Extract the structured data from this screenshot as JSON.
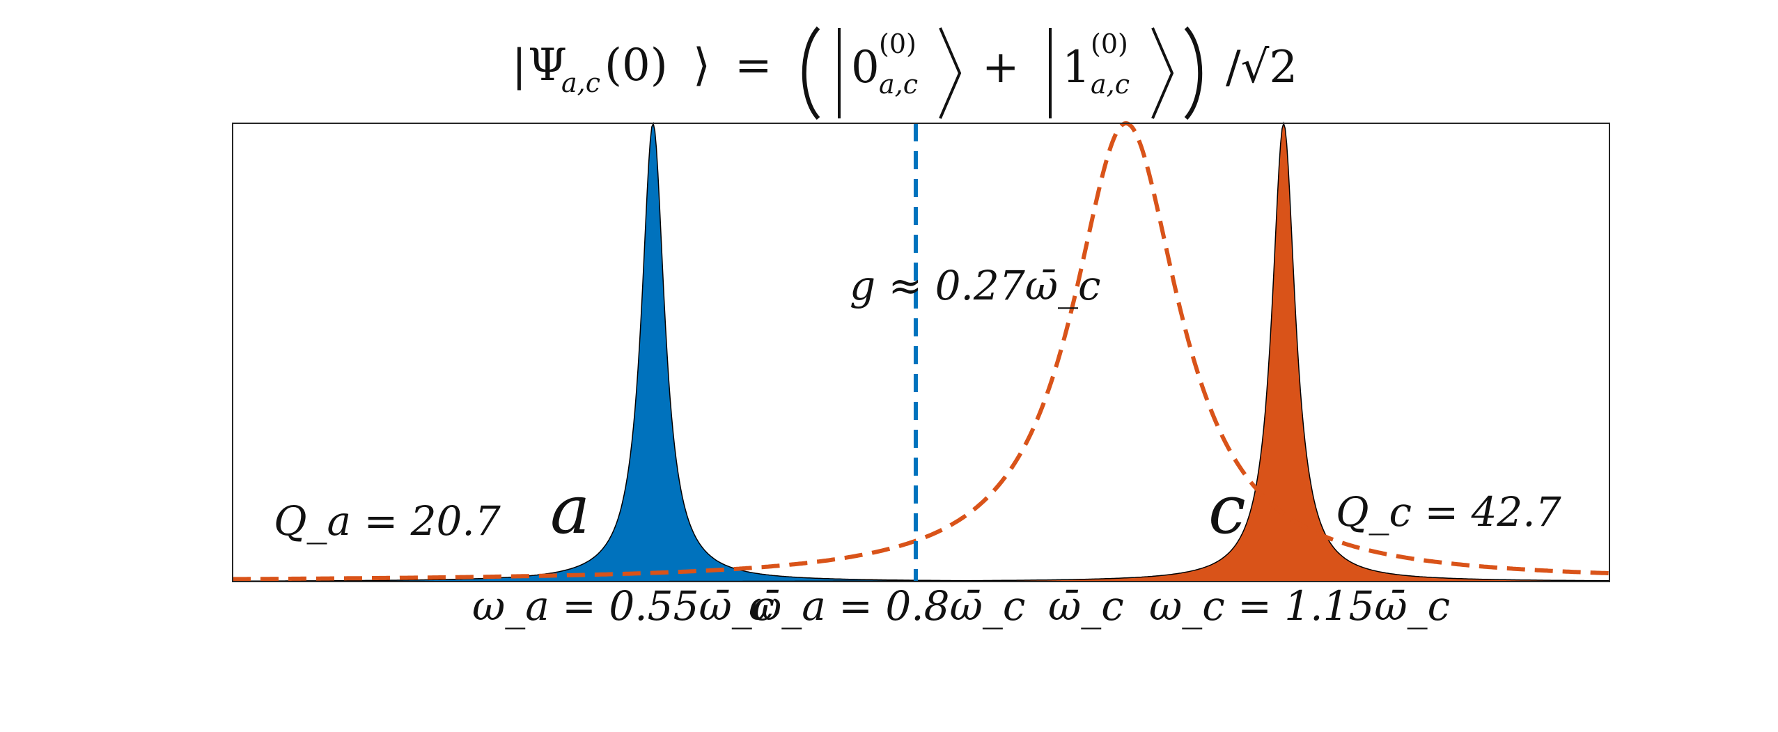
{
  "title": {
    "ket_open": "|",
    "psi": "Ψ",
    "psi_sub": "a,c",
    "arg": "(0)",
    "ket_close": "⟩",
    "equals": "=",
    "state0": "0",
    "state0_sup": "(0)",
    "state0_sub": "a,c",
    "plus": "+",
    "state1": "1",
    "state1_sup": "(0)",
    "state1_sub": "a,c",
    "div_sqrt": "/√2"
  },
  "colors": {
    "mode_a": "#0072BD",
    "mode_c": "#D95319",
    "axes": "#000000"
  },
  "chart_data": {
    "type": "area",
    "x_unit": "ω̄_c",
    "xlim": [
      0.15,
      1.46
    ],
    "ylim": [
      0,
      1
    ],
    "grid": false,
    "series": [
      {
        "name": "a",
        "kind": "filled-lorentzian",
        "center": 0.55,
        "Q": 20.7,
        "peak": 1.0,
        "color": "#0072BD"
      },
      {
        "name": "c",
        "kind": "filled-lorentzian",
        "center": 1.15,
        "Q": 42.7,
        "peak": 1.0,
        "color": "#D95319"
      },
      {
        "kind": "dashed-lorentzian",
        "center": 1.0,
        "Q": 8.0,
        "peak": 1.0,
        "color": "#D95319"
      },
      {
        "kind": "dashed-vertical",
        "x": 0.8,
        "color": "#0072BD"
      }
    ],
    "annotations": {
      "coupling": "g ≈ 0.27ω̄_c",
      "label_a": "a",
      "label_c": "c",
      "q_a": "Q_a = 20.7",
      "q_c": "Q_c = 42.7"
    },
    "tick_labels": {
      "omega_a": "ω_a = 0.55ω̄_c",
      "omega_bar_a": "ω̄_a = 0.8ω̄_c",
      "omega_bar_c": "ω̄_c",
      "omega_c": "ω_c = 1.15ω̄_c"
    }
  }
}
